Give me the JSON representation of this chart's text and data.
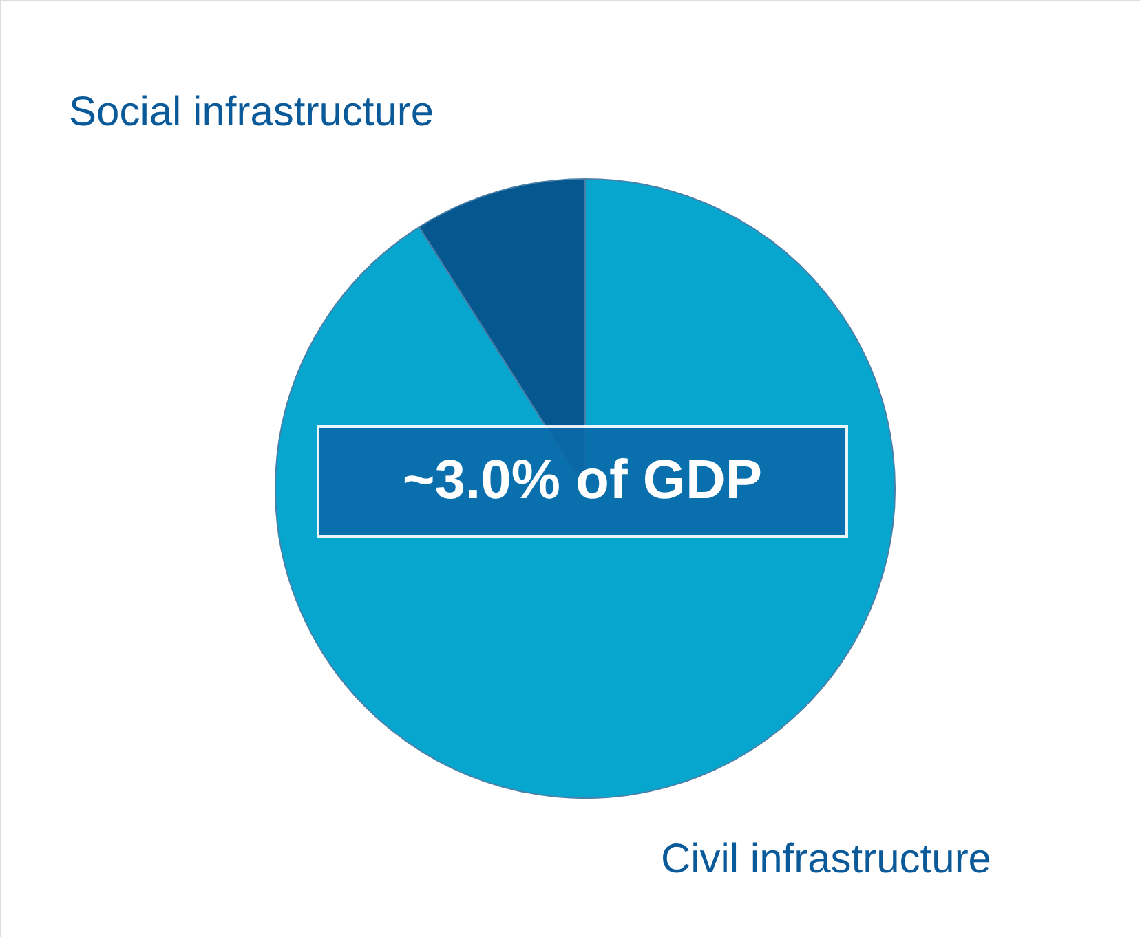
{
  "chart_data": {
    "type": "pie",
    "categories": [
      "Civil infrastructure",
      "Social infrastructure"
    ],
    "values": [
      91,
      9
    ],
    "colors": [
      "#06a6cf",
      "#05588f"
    ],
    "annotations": [
      "~3.0% of GDP"
    ]
  }
}
